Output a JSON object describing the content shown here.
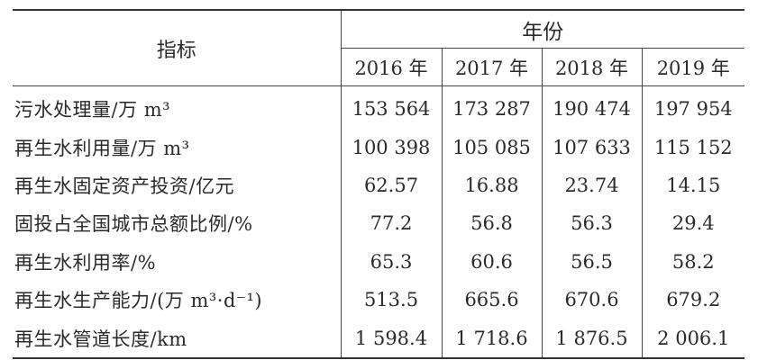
{
  "table": {
    "corner_header": "指标",
    "group_header": "年份",
    "years": [
      "2016 年",
      "2017 年",
      "2018 年",
      "2019 年"
    ],
    "rows": [
      {
        "label": "污水处理量/万 m³",
        "values": [
          "153 564",
          "173 287",
          "190 474",
          "197 954"
        ]
      },
      {
        "label": "再生水利用量/万 m³",
        "values": [
          "100 398",
          "105 085",
          "107 633",
          "115 152"
        ]
      },
      {
        "label": "再生水固定资产投资/亿元",
        "values": [
          "62.57",
          "16.88",
          "23.74",
          "14.15"
        ]
      },
      {
        "label": "固投占全国城市总额比例/%",
        "values": [
          "77.2",
          "56.8",
          "56.3",
          "29.4"
        ]
      },
      {
        "label": "再生水利用率/%",
        "values": [
          "65.3",
          "60.6",
          "56.5",
          "58.2"
        ]
      },
      {
        "label": "再生水生产能力/(万 m³·d⁻¹)",
        "values": [
          "513.5",
          "665.6",
          "670.6",
          "679.2"
        ]
      },
      {
        "label": "再生水管道长度/km",
        "values": [
          "1 598.4",
          "1 718.6",
          "1 876.5",
          "2 006.1"
        ]
      }
    ]
  }
}
